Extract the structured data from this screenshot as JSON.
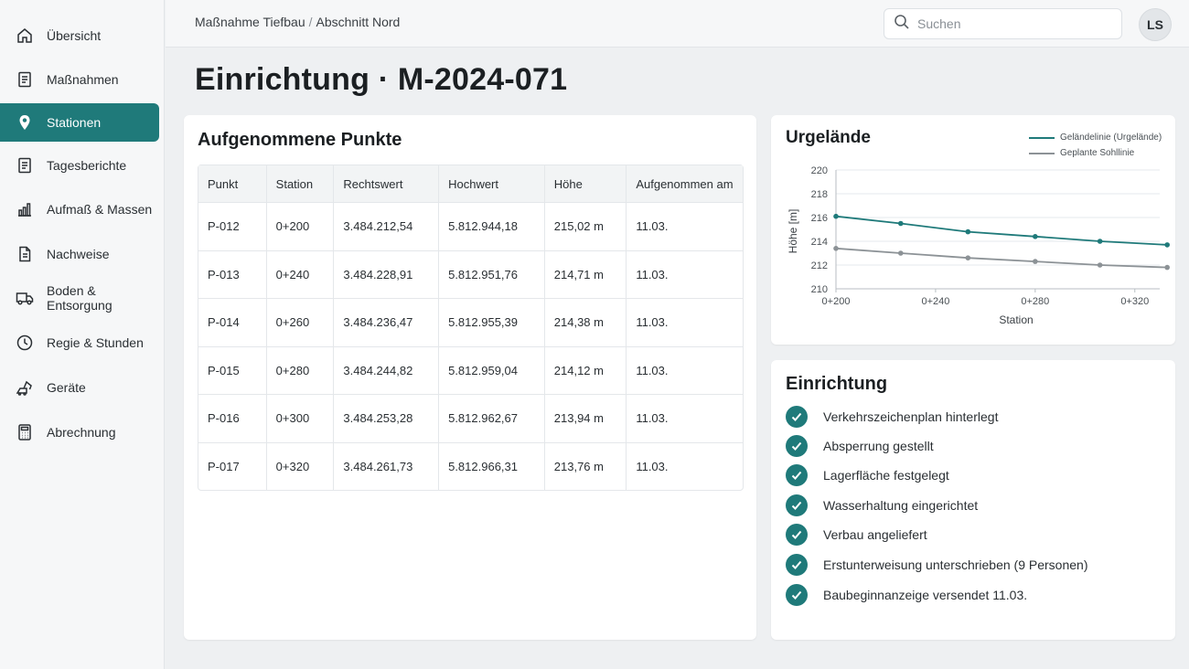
{
  "sidebar": {
    "items": [
      {
        "label": "Übersicht",
        "icon": "home-icon"
      },
      {
        "label": "Maßnahmen",
        "icon": "document-icon"
      },
      {
        "label": "Stationen",
        "icon": "location-pin-icon",
        "active": true
      },
      {
        "label": "Tagesberichte",
        "icon": "document-icon"
      },
      {
        "label": "Aufmaß & Massen",
        "icon": "bar-chart-icon"
      },
      {
        "label": "Nachweise",
        "icon": "file-icon"
      },
      {
        "label": "Boden & Entsorgung",
        "icon": "truck-icon"
      },
      {
        "label": "Regie & Stunden",
        "icon": "clock-icon"
      },
      {
        "label": "Geräte",
        "icon": "excavator-icon"
      },
      {
        "label": "Abrechnung",
        "icon": "calculator-icon"
      }
    ]
  },
  "header": {
    "breadcrumb": [
      "Maßnahme Tiefbau",
      "Abschnitt Nord"
    ],
    "breadcrumb_separator": "/",
    "search_placeholder": "Suchen",
    "avatar_initials": "LS"
  },
  "page": {
    "title": "Einrichtung · M-2024-071"
  },
  "points": {
    "title": "Aufgenommene Punkte",
    "columns": [
      "Punkt",
      "Station",
      "Rechtswert",
      "Hochwert",
      "Höhe",
      "Aufgenommen am"
    ],
    "rows": [
      [
        "P-012",
        "0+200",
        "3.484.212,54",
        "5.812.944,18",
        "215,02 m",
        "11.03."
      ],
      [
        "P-013",
        "0+240",
        "3.484.228,91",
        "5.812.951,76",
        "214,71 m",
        "11.03."
      ],
      [
        "P-014",
        "0+260",
        "3.484.236,47",
        "5.812.955,39",
        "214,38 m",
        "11.03."
      ],
      [
        "P-015",
        "0+280",
        "3.484.244,82",
        "5.812.959,04",
        "214,12 m",
        "11.03."
      ],
      [
        "P-016",
        "0+300",
        "3.484.253,28",
        "5.812.962,67",
        "213,94 m",
        "11.03."
      ],
      [
        "P-017",
        "0+320",
        "3.484.261,73",
        "5.812.966,31",
        "213,76 m",
        "11.03."
      ]
    ]
  },
  "chart_panel": {
    "title": "Urgelände"
  },
  "chart_data": {
    "type": "line",
    "xlabel": "Station",
    "ylabel": "Höhe [m]",
    "x_ticks": [
      "0+200",
      "0+240",
      "0+280",
      "0+320"
    ],
    "x_tick_values": [
      200,
      240,
      280,
      320
    ],
    "xlim": [
      200,
      330
    ],
    "ylim": [
      210,
      220
    ],
    "y_ticks": [
      210,
      212,
      214,
      216,
      218,
      220
    ],
    "grid": "horizontal",
    "legend_position": "top-right",
    "series": [
      {
        "name": "Geländelinie (Urgelände)",
        "color": "#1f7a7a",
        "x": [
          200,
          226,
          253,
          280,
          306,
          333
        ],
        "values": [
          216.1,
          215.5,
          214.8,
          214.4,
          214.0,
          213.7
        ]
      },
      {
        "name": "Geplante Sohllinie",
        "color": "#8c9296",
        "x": [
          200,
          226,
          253,
          280,
          306,
          333
        ],
        "values": [
          213.4,
          213.0,
          212.6,
          212.3,
          212.0,
          211.8
        ]
      }
    ]
  },
  "setup": {
    "title": "Einrichtung",
    "items": [
      "Verkehrszeichenplan hinterlegt",
      "Absperrung gestellt",
      "Lagerfläche festgelegt",
      "Wasserhaltung eingerichtet",
      "Verbau angeliefert",
      "Erstunterweisung unterschrieben (9 Personen)",
      "Baubeginnanzeige versendet 11.03."
    ]
  },
  "colors": {
    "accent": "#1f7a7a",
    "secondary_line": "#8c9296"
  }
}
